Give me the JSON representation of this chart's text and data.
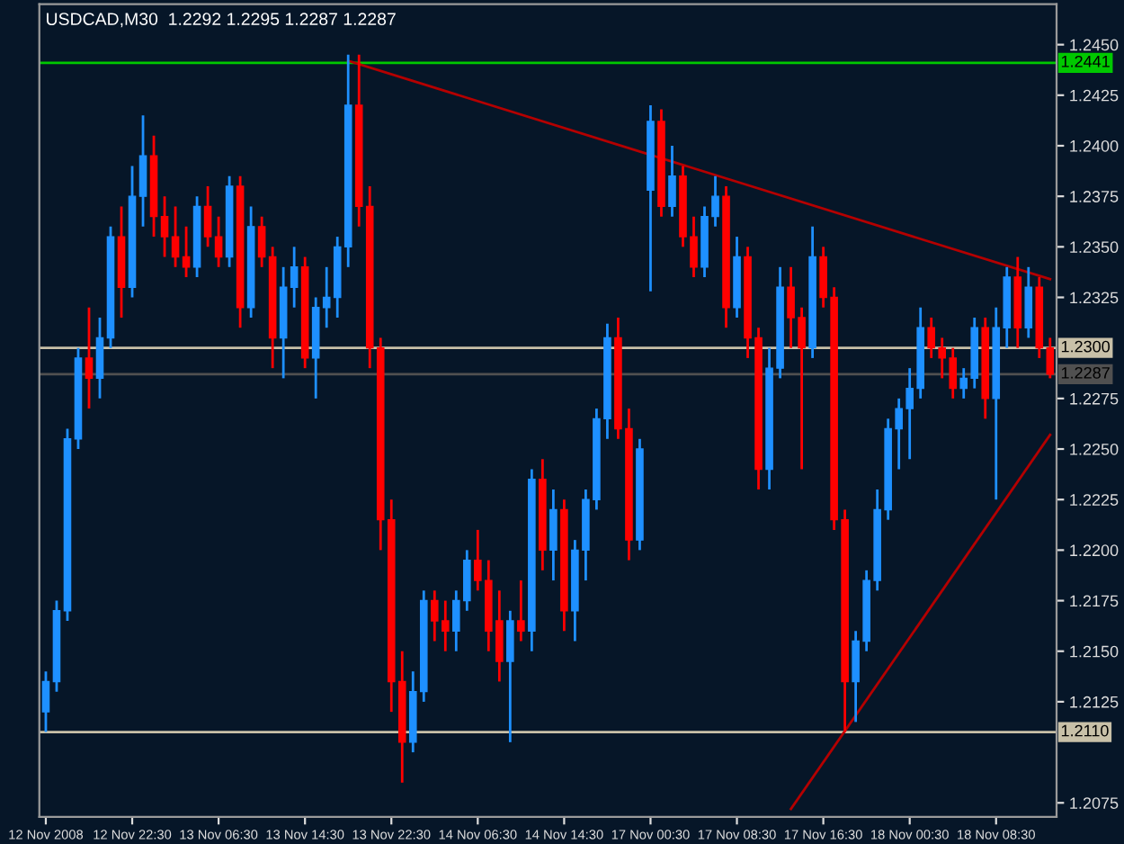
{
  "chart_data": {
    "type": "candlestick",
    "title": "USDCAD,M30  1.2292 1.2295 1.2287 1.2287",
    "categories": [
      "12 Nov 2008",
      null,
      null,
      null,
      null,
      null,
      null,
      null,
      "12 Nov 22:30",
      null,
      null,
      null,
      null,
      null,
      null,
      null,
      "13 Nov 06:30",
      null,
      null,
      null,
      null,
      null,
      null,
      null,
      "13 Nov 14:30",
      null,
      null,
      null,
      null,
      null,
      null,
      null,
      "13 Nov 22:30",
      null,
      null,
      null,
      null,
      null,
      null,
      null,
      "14 Nov 06:30",
      null,
      null,
      null,
      null,
      null,
      null,
      null,
      "14 Nov 14:30",
      null,
      null,
      null,
      null,
      null,
      null,
      null,
      "17 Nov 00:30",
      null,
      null,
      null,
      null,
      null,
      null,
      null,
      "17 Nov 08:30",
      null,
      null,
      null,
      null,
      null,
      null,
      null,
      "17 Nov 16:30",
      null,
      null,
      null,
      null,
      null,
      null,
      null,
      "18 Nov 00:30",
      null,
      null,
      null,
      null,
      null,
      null,
      null,
      "18 Nov 08:30",
      null,
      null,
      null,
      null,
      null
    ],
    "ohlc": [
      [
        1.212,
        1.214,
        1.211,
        1.2135
      ],
      [
        1.2135,
        1.2175,
        1.213,
        1.217
      ],
      [
        1.217,
        1.226,
        1.2165,
        1.2255
      ],
      [
        1.2255,
        1.23,
        1.225,
        1.2295
      ],
      [
        1.2295,
        1.232,
        1.227,
        1.2285
      ],
      [
        1.2285,
        1.2315,
        1.2275,
        1.2305
      ],
      [
        1.2305,
        1.236,
        1.23,
        1.2355
      ],
      [
        1.2355,
        1.237,
        1.2315,
        1.233
      ],
      [
        1.233,
        1.239,
        1.2325,
        1.2375
      ],
      [
        1.2375,
        1.2415,
        1.236,
        1.2395
      ],
      [
        1.2395,
        1.2405,
        1.2355,
        1.2365
      ],
      [
        1.2365,
        1.2375,
        1.2345,
        1.2355
      ],
      [
        1.2355,
        1.237,
        1.234,
        1.2345
      ],
      [
        1.2345,
        1.236,
        1.2335,
        1.234
      ],
      [
        1.234,
        1.2375,
        1.2335,
        1.237
      ],
      [
        1.237,
        1.238,
        1.235,
        1.2355
      ],
      [
        1.2355,
        1.2365,
        1.234,
        1.2345
      ],
      [
        1.2345,
        1.2385,
        1.234,
        1.238
      ],
      [
        1.238,
        1.2385,
        1.231,
        1.232
      ],
      [
        1.232,
        1.237,
        1.2315,
        1.236
      ],
      [
        1.236,
        1.2365,
        1.234,
        1.2345
      ],
      [
        1.2345,
        1.235,
        1.229,
        1.2305
      ],
      [
        1.2305,
        1.234,
        1.2285,
        1.233
      ],
      [
        1.233,
        1.235,
        1.232,
        1.234
      ],
      [
        1.234,
        1.2345,
        1.229,
        1.2295
      ],
      [
        1.2295,
        1.2325,
        1.2275,
        1.232
      ],
      [
        1.232,
        1.234,
        1.231,
        1.2325
      ],
      [
        1.2325,
        1.2355,
        1.2315,
        1.235
      ],
      [
        1.235,
        1.2445,
        1.234,
        1.242
      ],
      [
        1.242,
        1.2445,
        1.236,
        1.237
      ],
      [
        1.237,
        1.238,
        1.229,
        1.23
      ],
      [
        1.23,
        1.2305,
        1.22,
        1.2215
      ],
      [
        1.2215,
        1.2225,
        1.212,
        1.2135
      ],
      [
        1.2135,
        1.215,
        1.2085,
        1.2105
      ],
      [
        1.2105,
        1.214,
        1.21,
        1.213
      ],
      [
        1.213,
        1.218,
        1.2125,
        1.2175
      ],
      [
        1.2175,
        1.218,
        1.2155,
        1.2165
      ],
      [
        1.2165,
        1.2175,
        1.215,
        1.216
      ],
      [
        1.216,
        1.218,
        1.215,
        1.2175
      ],
      [
        1.2175,
        1.22,
        1.217,
        1.2195
      ],
      [
        1.2195,
        1.221,
        1.218,
        1.2185
      ],
      [
        1.2185,
        1.2195,
        1.215,
        1.216
      ],
      [
        1.2165,
        1.218,
        1.2135,
        1.2145
      ],
      [
        1.2145,
        1.217,
        1.2105,
        1.2165
      ],
      [
        1.2165,
        1.2185,
        1.2155,
        1.216
      ],
      [
        1.216,
        1.224,
        1.215,
        1.2235
      ],
      [
        1.2235,
        1.2245,
        1.219,
        1.22
      ],
      [
        1.22,
        1.223,
        1.2185,
        1.222
      ],
      [
        1.222,
        1.2225,
        1.216,
        1.217
      ],
      [
        1.217,
        1.2205,
        1.2155,
        1.22
      ],
      [
        1.22,
        1.223,
        1.2185,
        1.2225
      ],
      [
        1.2225,
        1.227,
        1.222,
        1.2265
      ],
      [
        1.2265,
        1.2312,
        1.2255,
        1.2305
      ],
      [
        1.2305,
        1.2315,
        1.2255,
        1.226
      ],
      [
        1.226,
        1.227,
        1.2195,
        1.2205
      ],
      [
        1.2205,
        1.2255,
        1.22,
        1.225
      ],
      [
        1.2378,
        1.242,
        1.2328,
        1.2412
      ],
      [
        1.2412,
        1.2418,
        1.2365,
        1.237
      ],
      [
        1.237,
        1.24,
        1.2365,
        1.2385
      ],
      [
        1.2385,
        1.239,
        1.235,
        1.2355
      ],
      [
        1.2355,
        1.2365,
        1.2335,
        1.234
      ],
      [
        1.234,
        1.237,
        1.2335,
        1.2365
      ],
      [
        1.2365,
        1.2385,
        1.236,
        1.2375
      ],
      [
        1.2375,
        1.238,
        1.231,
        1.232
      ],
      [
        1.232,
        1.2355,
        1.2315,
        1.2345
      ],
      [
        1.2345,
        1.235,
        1.2295,
        1.2305
      ],
      [
        1.2305,
        1.231,
        1.223,
        1.224
      ],
      [
        1.224,
        1.23,
        1.223,
        1.229
      ],
      [
        1.229,
        1.234,
        1.2285,
        1.233
      ],
      [
        1.233,
        1.234,
        1.23,
        1.2315
      ],
      [
        1.2315,
        1.232,
        1.224,
        1.23
      ],
      [
        1.23,
        1.236,
        1.2295,
        1.2345
      ],
      [
        1.2345,
        1.235,
        1.232,
        1.2325
      ],
      [
        1.2325,
        1.233,
        1.221,
        1.2215
      ],
      [
        1.2215,
        1.222,
        1.211,
        1.2135
      ],
      [
        1.2135,
        1.216,
        1.2115,
        1.2155
      ],
      [
        1.2155,
        1.219,
        1.215,
        1.2185
      ],
      [
        1.2185,
        1.223,
        1.218,
        1.222
      ],
      [
        1.222,
        1.2265,
        1.2215,
        1.226
      ],
      [
        1.226,
        1.2275,
        1.224,
        1.227
      ],
      [
        1.227,
        1.229,
        1.2245,
        1.228
      ],
      [
        1.228,
        1.232,
        1.2275,
        1.231
      ],
      [
        1.231,
        1.2315,
        1.2295,
        1.23
      ],
      [
        1.23,
        1.2305,
        1.2285,
        1.2295
      ],
      [
        1.2295,
        1.23,
        1.2275,
        1.228
      ],
      [
        1.228,
        1.229,
        1.2275,
        1.2285
      ],
      [
        1.2285,
        1.2315,
        1.228,
        1.231
      ],
      [
        1.231,
        1.2315,
        1.2265,
        1.2275
      ],
      [
        1.2275,
        1.232,
        1.2225,
        1.231
      ],
      [
        1.231,
        1.234,
        1.23,
        1.2335
      ],
      [
        1.2335,
        1.2345,
        1.23,
        1.231
      ],
      [
        1.231,
        1.234,
        1.2305,
        1.233
      ],
      [
        1.233,
        1.2335,
        1.2295,
        1.23
      ],
      [
        1.23,
        1.2305,
        1.2285,
        1.2287
      ]
    ],
    "colors": [
      "#1e90ff",
      "#1e90ff",
      "#1e90ff",
      "#1e90ff",
      "#ff0000",
      "#1e90ff",
      "#1e90ff",
      "#ff0000",
      "#1e90ff",
      "#1e90ff",
      "#ff0000",
      "#ff0000",
      "#ff0000",
      "#ff0000",
      "#1e90ff",
      "#ff0000",
      "#ff0000",
      "#1e90ff",
      "#ff0000",
      "#1e90ff",
      "#ff0000",
      "#ff0000",
      "#1e90ff",
      "#1e90ff",
      "#ff0000",
      "#1e90ff",
      "#1e90ff",
      "#1e90ff",
      "#1e90ff",
      "#ff0000",
      "#ff0000",
      "#ff0000",
      "#ff0000",
      "#ff0000",
      "#1e90ff",
      "#1e90ff",
      "#ff0000",
      "#ff0000",
      "#1e90ff",
      "#1e90ff",
      "#ff0000",
      "#ff0000",
      "#ff0000",
      "#1e90ff",
      "#ff0000",
      "#1e90ff",
      "#ff0000",
      "#1e90ff",
      "#ff0000",
      "#1e90ff",
      "#1e90ff",
      "#1e90ff",
      "#1e90ff",
      "#ff0000",
      "#ff0000",
      "#1e90ff",
      "#1e90ff",
      "#ff0000",
      "#1e90ff",
      "#ff0000",
      "#ff0000",
      "#1e90ff",
      "#1e90ff",
      "#ff0000",
      "#1e90ff",
      "#ff0000",
      "#ff0000",
      "#1e90ff",
      "#1e90ff",
      "#ff0000",
      "#ff0000",
      "#1e90ff",
      "#ff0000",
      "#ff0000",
      "#ff0000",
      "#1e90ff",
      "#1e90ff",
      "#1e90ff",
      "#1e90ff",
      "#1e90ff",
      "#1e90ff",
      "#1e90ff",
      "#ff0000",
      "#ff0000",
      "#ff0000",
      "#1e90ff",
      "#1e90ff",
      "#ff0000",
      "#1e90ff",
      "#1e90ff",
      "#ff0000",
      "#1e90ff",
      "#ff0000",
      "#ff0000"
    ],
    "series": [
      {
        "type": "line",
        "color": "#b40000",
        "values": [
          null,
          null,
          null,
          null,
          null,
          null,
          null,
          null,
          null,
          null,
          null,
          null,
          null,
          null,
          null,
          null,
          null,
          null,
          null,
          null,
          null,
          null,
          null,
          null,
          null,
          null,
          null,
          null,
          1.2442,
          null,
          null,
          null,
          null,
          null,
          null,
          null,
          null,
          null,
          null,
          null,
          null,
          null,
          null,
          null,
          null,
          null,
          null,
          null,
          null,
          null,
          null,
          null,
          null,
          null,
          null,
          null,
          null,
          null,
          null,
          null,
          null,
          null,
          null,
          null,
          null,
          null,
          null,
          null,
          null,
          null,
          null,
          null,
          null,
          null,
          null,
          null,
          null,
          null,
          null,
          null,
          null,
          null,
          null,
          null,
          null,
          null,
          null,
          null,
          null,
          null,
          null,
          null,
          null,
          1.2334
        ]
      },
      {
        "type": "line",
        "color": "#b40000",
        "values": [
          null,
          null,
          null,
          null,
          null,
          null,
          null,
          null,
          null,
          null,
          null,
          null,
          null,
          null,
          null,
          null,
          null,
          null,
          null,
          null,
          null,
          null,
          null,
          null,
          null,
          null,
          null,
          null,
          null,
          null,
          null,
          null,
          null,
          null,
          null,
          null,
          null,
          null,
          null,
          null,
          null,
          null,
          null,
          null,
          null,
          null,
          null,
          null,
          null,
          null,
          null,
          null,
          null,
          null,
          null,
          null,
          null,
          null,
          null,
          null,
          null,
          null,
          null,
          null,
          null,
          null,
          null,
          null,
          null,
          1.2072,
          null,
          null,
          null,
          null,
          null,
          null,
          null,
          null,
          null,
          null,
          null,
          null,
          null,
          null,
          null,
          null,
          null,
          null,
          null,
          null,
          null,
          null,
          null,
          1.2257
        ]
      }
    ],
    "ref_lines": [
      {
        "axis": "y",
        "value": 1.2441,
        "label": "1.2441",
        "color": "#00c800"
      },
      {
        "axis": "y",
        "value": 1.23,
        "label": "1.2300",
        "color": "#c8c0a8"
      },
      {
        "axis": "y",
        "value": 1.2287,
        "label": "1.2287",
        "color": "#505050"
      },
      {
        "axis": "y",
        "value": 1.211,
        "label": "1.2110",
        "color": "#c8c0a8"
      }
    ],
    "ylim": [
      1.2068,
      1.247
    ],
    "yticks": [
      {
        "value": 1.2075,
        "label": "1.2075"
      },
      {
        "value": 1.2125,
        "label": "1.2125"
      },
      {
        "value": 1.215,
        "label": "1.2150"
      },
      {
        "value": 1.2175,
        "label": "1.2175"
      },
      {
        "value": 1.22,
        "label": "1.2200"
      },
      {
        "value": 1.2225,
        "label": "1.2225"
      },
      {
        "value": 1.225,
        "label": "1.2250"
      },
      {
        "value": 1.2275,
        "label": "1.2275"
      },
      {
        "value": 1.2325,
        "label": "1.2325"
      },
      {
        "value": 1.235,
        "label": "1.2350"
      },
      {
        "value": 1.2375,
        "label": "1.2375"
      },
      {
        "value": 1.24,
        "label": "1.2400"
      },
      {
        "value": 1.2425,
        "label": "1.2425"
      },
      {
        "value": 1.245,
        "label": "1.2450"
      }
    ],
    "grid": false,
    "legend": false
  }
}
